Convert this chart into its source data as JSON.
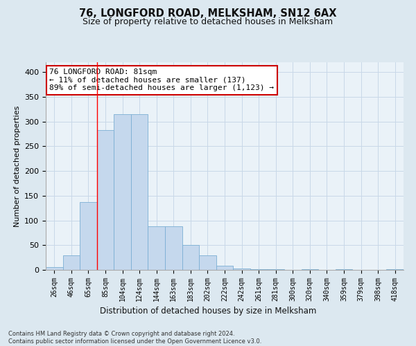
{
  "title": "76, LONGFORD ROAD, MELKSHAM, SN12 6AX",
  "subtitle": "Size of property relative to detached houses in Melksham",
  "xlabel": "Distribution of detached houses by size in Melksham",
  "ylabel": "Number of detached properties",
  "categories": [
    "26sqm",
    "46sqm",
    "65sqm",
    "85sqm",
    "104sqm",
    "124sqm",
    "144sqm",
    "163sqm",
    "183sqm",
    "202sqm",
    "222sqm",
    "242sqm",
    "261sqm",
    "281sqm",
    "300sqm",
    "320sqm",
    "340sqm",
    "359sqm",
    "379sqm",
    "398sqm",
    "418sqm"
  ],
  "values": [
    5,
    30,
    137,
    283,
    315,
    315,
    88,
    88,
    50,
    30,
    8,
    3,
    2,
    1,
    0,
    1,
    0,
    1,
    0,
    0,
    1
  ],
  "bar_color": "#c5d8ed",
  "bar_edge_color": "#7bafd4",
  "bar_width": 1.0,
  "annotation_text": "76 LONGFORD ROAD: 81sqm\n← 11% of detached houses are smaller (137)\n89% of semi-detached houses are larger (1,123) →",
  "annotation_box_color": "#ffffff",
  "annotation_box_edge_color": "#cc0000",
  "grid_color": "#c8d8e8",
  "background_color": "#dce8f0",
  "plot_background_color": "#eaf2f8",
  "ylim": [
    0,
    420
  ],
  "yticks": [
    0,
    50,
    100,
    150,
    200,
    250,
    300,
    350,
    400
  ],
  "footnote": "Contains HM Land Registry data © Crown copyright and database right 2024.\nContains public sector information licensed under the Open Government Licence v3.0.",
  "property_line_x": 2.5
}
